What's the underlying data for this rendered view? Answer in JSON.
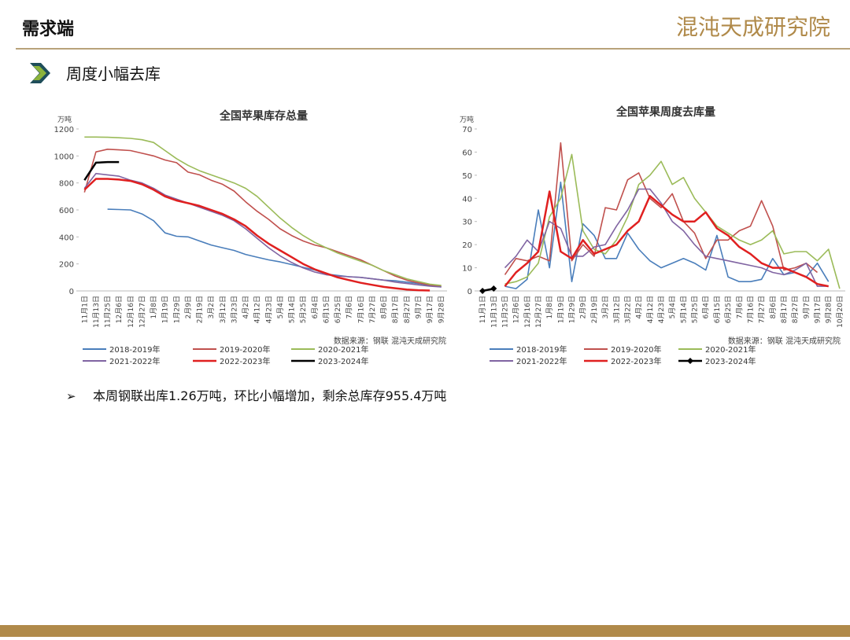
{
  "header": {
    "title": "需求端",
    "logo": "混沌天成研究院"
  },
  "section": "周度小幅去库",
  "bullet": "本周钢联出库1.26万吨，环比小幅增加，剩余总库存955.4万吨",
  "chart_data": [
    {
      "type": "line",
      "title": "全国苹果库存总量",
      "y_unit": "万吨",
      "source": "数据来源：钢联  混沌天成研究院",
      "categories": [
        "11月1日",
        "11月13日",
        "11月25日",
        "12月6日",
        "12月16日",
        "12月27日",
        "1月8日",
        "1月19日",
        "1月29日",
        "2月9日",
        "2月19日",
        "3月2日",
        "3月12日",
        "3月23日",
        "4月2日",
        "4月12日",
        "4月23日",
        "5月4日",
        "5月14日",
        "5月25日",
        "6月4日",
        "6月15日",
        "6月25日",
        "7月6日",
        "7月16日",
        "7月27日",
        "8月6日",
        "8月17日",
        "8月27日",
        "9月7日",
        "9月17日",
        "9月28日"
      ],
      "ylim": [
        0,
        1200
      ],
      "yticks": [
        0,
        200,
        400,
        600,
        800,
        1000,
        1200
      ],
      "series": [
        {
          "name": "2018-2019年",
          "color": "#4a7ebb",
          "values": [
            null,
            null,
            605,
            603,
            600,
            570,
            520,
            430,
            405,
            400,
            370,
            340,
            320,
            300,
            270,
            250,
            230,
            215,
            195,
            175,
            155,
            125,
            115,
            105,
            100,
            90,
            80,
            75,
            65,
            55,
            40,
            30
          ]
        },
        {
          "name": "2019-2020年",
          "color": "#c0504d",
          "values": [
            730,
            1030,
            1050,
            1045,
            1040,
            1020,
            1000,
            970,
            950,
            880,
            860,
            820,
            790,
            740,
            660,
            590,
            530,
            460,
            410,
            370,
            340,
            320,
            290,
            260,
            230,
            190,
            150,
            110,
            80,
            60,
            45,
            35
          ]
        },
        {
          "name": "2020-2021年",
          "color": "#9bbb59",
          "values": [
            1140,
            1140,
            1138,
            1135,
            1130,
            1120,
            1100,
            1040,
            980,
            930,
            890,
            860,
            830,
            800,
            760,
            700,
            620,
            540,
            470,
            410,
            360,
            320,
            280,
            250,
            220,
            190,
            150,
            120,
            90,
            70,
            50,
            40
          ]
        },
        {
          "name": "2021-2022年",
          "color": "#8064a2",
          "values": [
            760,
            870,
            860,
            850,
            820,
            800,
            760,
            710,
            680,
            650,
            620,
            590,
            560,
            520,
            460,
            390,
            320,
            260,
            210,
            170,
            140,
            120,
            110,
            105,
            100,
            90,
            80,
            65,
            55,
            45,
            35,
            30
          ]
        },
        {
          "name": "2022-2023年",
          "color": "#e02020",
          "values": [
            750,
            830,
            830,
            825,
            815,
            790,
            750,
            700,
            670,
            650,
            630,
            600,
            570,
            530,
            480,
            410,
            350,
            300,
            250,
            200,
            160,
            130,
            100,
            80,
            60,
            45,
            30,
            20,
            10,
            5,
            3,
            null
          ]
        },
        {
          "name": "2023-2024年",
          "color": "#000000",
          "values": [
            820,
            950,
            955,
            955,
            null,
            null,
            null,
            null,
            null,
            null,
            null,
            null,
            null,
            null,
            null,
            null,
            null,
            null,
            null,
            null,
            null,
            null,
            null,
            null,
            null,
            null,
            null,
            null,
            null,
            null,
            null,
            null
          ]
        }
      ]
    },
    {
      "type": "line",
      "title": "全国苹果周度去库量",
      "y_unit": "万吨",
      "source": "数据来源：钢联  混沌天成研究院",
      "categories": [
        "11月1日",
        "11月13日",
        "11月25日",
        "12月6日",
        "12月16日",
        "12月27日",
        "1月8日",
        "1月19日",
        "1月29日",
        "2月9日",
        "2月19日",
        "3月2日",
        "3月12日",
        "3月22日",
        "4月2日",
        "4月12日",
        "4月23日",
        "5月4日",
        "5月14日",
        "5月25日",
        "6月4日",
        "6月15日",
        "6月25日",
        "7月6日",
        "7月16日",
        "7月27日",
        "8月6日",
        "8月17日",
        "8月27日",
        "9月7日",
        "9月17日",
        "9月28日",
        "10月20日"
      ],
      "ylim": [
        0,
        70
      ],
      "yticks": [
        0,
        10,
        20,
        30,
        40,
        50,
        60,
        70
      ],
      "series": [
        {
          "name": "2018-2019年",
          "color": "#4a7ebb",
          "values": [
            null,
            null,
            2,
            1,
            5,
            35,
            10,
            47,
            4,
            29,
            24,
            14,
            14,
            25,
            18,
            13,
            10,
            12,
            14,
            12,
            9,
            24,
            6,
            4,
            4,
            5,
            14,
            7,
            8,
            6,
            12,
            4,
            null
          ]
        },
        {
          "name": "2019-2020年",
          "color": "#c0504d",
          "values": [
            null,
            null,
            7,
            14,
            13,
            15,
            13,
            64,
            13,
            20,
            15,
            36,
            35,
            48,
            51,
            40,
            36,
            42,
            30,
            25,
            14,
            22,
            22,
            26,
            28,
            39,
            28,
            9,
            10,
            12,
            8,
            null,
            null
          ]
        },
        {
          "name": "2020-2021年",
          "color": "#9bbb59",
          "values": [
            null,
            null,
            3,
            4,
            6,
            12,
            32,
            40,
            59,
            26,
            18,
            16,
            22,
            32,
            46,
            50,
            56,
            46,
            49,
            40,
            34,
            28,
            25,
            22,
            20,
            22,
            26,
            16,
            17,
            17,
            13,
            18,
            1
          ]
        },
        {
          "name": "2021-2022年",
          "color": "#8064a2",
          "values": [
            null,
            null,
            10,
            15,
            22,
            17,
            30,
            27,
            15,
            15,
            19,
            20,
            28,
            35,
            44,
            44,
            38,
            30,
            26,
            20,
            15,
            14,
            13,
            12,
            11,
            10,
            8,
            7,
            9,
            12,
            2,
            2,
            null
          ]
        },
        {
          "name": "2022-2023年",
          "color": "#e02020",
          "values": [
            null,
            null,
            2,
            8,
            12,
            17,
            43,
            17,
            14,
            22,
            16,
            18,
            20,
            26,
            30,
            41,
            37,
            33,
            30,
            30,
            34,
            27,
            24,
            19,
            16,
            12,
            10,
            10,
            8,
            6,
            3,
            2,
            null
          ]
        },
        {
          "name": "2023-2024年",
          "color": "#000000",
          "marker": "diamond",
          "values": [
            0,
            1,
            null,
            null,
            null,
            null,
            null,
            null,
            null,
            null,
            null,
            null,
            null,
            null,
            null,
            null,
            null,
            null,
            null,
            null,
            null,
            null,
            null,
            null,
            null,
            null,
            null,
            null,
            null,
            null,
            null,
            null,
            null
          ]
        }
      ]
    }
  ]
}
